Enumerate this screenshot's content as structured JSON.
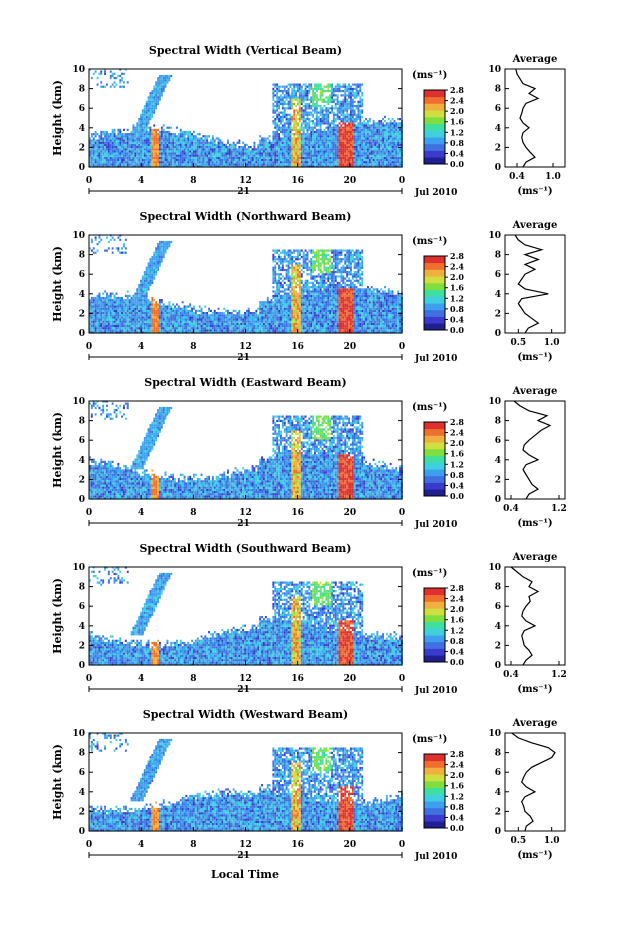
{
  "figure": {
    "xlabel_global": "Local Time",
    "month_label": "Jul 2010",
    "day_label": "21",
    "colorbar_unit": "(ms⁻¹)",
    "avg_title": "Average",
    "avg_xlabel": "(ms⁻¹)"
  },
  "colorbar": {
    "ticks": [
      "0.0",
      "0.4",
      "0.8",
      "1.2",
      "1.6",
      "2.0",
      "2.4",
      "2.8"
    ],
    "colors": [
      "#1f1f8f",
      "#3a3acc",
      "#3f6fe0",
      "#3f9fef",
      "#3fcfdf",
      "#3fdf9f",
      "#7fdf3f",
      "#cfdf3f",
      "#efb03f",
      "#ef6f2f",
      "#df2f2f"
    ]
  },
  "chart_data": [
    {
      "type": "heatmap",
      "title": "Spectral Width (Vertical Beam)",
      "ylabel": "Height (km)",
      "xlim": [
        0,
        24
      ],
      "ylim": [
        0,
        10
      ],
      "xticks": [
        "0",
        "4",
        "8",
        "12",
        "16",
        "20",
        "0"
      ],
      "yticks": [
        "0",
        "2",
        "4",
        "6",
        "8",
        "10"
      ],
      "average": {
        "xticks": [
          "0.4",
          "1.0"
        ],
        "xlim": [
          0.2,
          1.2
        ],
        "profile": [
          [
            0.5,
            0
          ],
          [
            0.55,
            0.5
          ],
          [
            0.7,
            1
          ],
          [
            0.62,
            1.5
          ],
          [
            0.55,
            2
          ],
          [
            0.5,
            2.5
          ],
          [
            0.48,
            3
          ],
          [
            0.5,
            3.5
          ],
          [
            0.6,
            4
          ],
          [
            0.5,
            4.5
          ],
          [
            0.45,
            5
          ],
          [
            0.48,
            5.5
          ],
          [
            0.5,
            6
          ],
          [
            0.55,
            6.5
          ],
          [
            0.75,
            7
          ],
          [
            0.6,
            7.5
          ],
          [
            0.7,
            8
          ],
          [
            0.5,
            8.5
          ],
          [
            0.45,
            9
          ],
          [
            0.4,
            9.5
          ],
          [
            0.38,
            10
          ]
        ]
      }
    },
    {
      "type": "heatmap",
      "title": "Spectral Width (Northward Beam)",
      "ylabel": "Height (km)",
      "xlim": [
        0,
        24
      ],
      "ylim": [
        0,
        10
      ],
      "xticks": [
        "0",
        "4",
        "8",
        "12",
        "16",
        "20",
        "0"
      ],
      "yticks": [
        "0",
        "2",
        "4",
        "6",
        "8",
        "10"
      ],
      "average": {
        "xticks": [
          "0.5",
          "1.0"
        ],
        "xlim": [
          0.3,
          1.2
        ],
        "profile": [
          [
            0.6,
            0
          ],
          [
            0.65,
            0.5
          ],
          [
            0.8,
            1
          ],
          [
            0.7,
            1.5
          ],
          [
            0.6,
            2
          ],
          [
            0.55,
            2.5
          ],
          [
            0.5,
            3
          ],
          [
            0.55,
            3.5
          ],
          [
            0.95,
            4
          ],
          [
            0.6,
            4.5
          ],
          [
            0.5,
            5
          ],
          [
            0.55,
            5.5
          ],
          [
            0.6,
            6
          ],
          [
            0.75,
            6.5
          ],
          [
            0.6,
            7
          ],
          [
            0.8,
            7.5
          ],
          [
            0.6,
            8
          ],
          [
            0.85,
            8.5
          ],
          [
            0.6,
            9
          ],
          [
            0.5,
            9.5
          ],
          [
            0.45,
            10
          ]
        ]
      }
    },
    {
      "type": "heatmap",
      "title": "Spectral Width (Eastward Beam)",
      "ylabel": "Height (km)",
      "xlim": [
        0,
        24
      ],
      "ylim": [
        0,
        10
      ],
      "xticks": [
        "0",
        "4",
        "8",
        "12",
        "16",
        "20",
        "0"
      ],
      "yticks": [
        "0",
        "2",
        "4",
        "6",
        "8",
        "10"
      ],
      "average": {
        "xticks": [
          "0.4",
          "1.2"
        ],
        "xlim": [
          0.3,
          1.3
        ],
        "profile": [
          [
            0.65,
            0
          ],
          [
            0.7,
            0.5
          ],
          [
            0.85,
            1
          ],
          [
            0.75,
            1.5
          ],
          [
            0.7,
            2
          ],
          [
            0.65,
            2.5
          ],
          [
            0.6,
            3
          ],
          [
            0.65,
            3.5
          ],
          [
            0.85,
            4
          ],
          [
            0.7,
            4.5
          ],
          [
            0.6,
            5
          ],
          [
            0.62,
            5.5
          ],
          [
            0.7,
            6
          ],
          [
            0.8,
            6.5
          ],
          [
            0.9,
            7
          ],
          [
            1.05,
            7.5
          ],
          [
            0.85,
            8
          ],
          [
            1.0,
            8.5
          ],
          [
            0.7,
            9
          ],
          [
            0.55,
            9.5
          ],
          [
            0.45,
            10
          ]
        ]
      }
    },
    {
      "type": "heatmap",
      "title": "Spectral Width (Southward Beam)",
      "ylabel": "Height (km)",
      "xlim": [
        0,
        24
      ],
      "ylim": [
        0,
        10
      ],
      "xticks": [
        "0",
        "4",
        "8",
        "12",
        "16",
        "20",
        "0"
      ],
      "yticks": [
        "0",
        "2",
        "4",
        "6",
        "8",
        "10"
      ],
      "average": {
        "xticks": [
          "0.4",
          "1.2"
        ],
        "xlim": [
          0.3,
          1.3
        ],
        "profile": [
          [
            0.6,
            0
          ],
          [
            0.65,
            0.5
          ],
          [
            0.75,
            1
          ],
          [
            0.7,
            1.5
          ],
          [
            0.62,
            2
          ],
          [
            0.6,
            2.5
          ],
          [
            0.58,
            3
          ],
          [
            0.62,
            3.5
          ],
          [
            0.8,
            4
          ],
          [
            0.65,
            4.5
          ],
          [
            0.58,
            5
          ],
          [
            0.6,
            5.5
          ],
          [
            0.65,
            6
          ],
          [
            0.72,
            6.5
          ],
          [
            0.7,
            7
          ],
          [
            0.85,
            7.5
          ],
          [
            0.7,
            8
          ],
          [
            0.75,
            8.5
          ],
          [
            0.6,
            9
          ],
          [
            0.5,
            9.5
          ],
          [
            0.4,
            10
          ]
        ]
      }
    },
    {
      "type": "heatmap",
      "title": "Spectral Width (Westward Beam)",
      "ylabel": "Height (km)",
      "xlim": [
        0,
        24
      ],
      "ylim": [
        0,
        10
      ],
      "xticks": [
        "0",
        "4",
        "8",
        "12",
        "16",
        "20",
        "0"
      ],
      "yticks": [
        "0",
        "2",
        "4",
        "6",
        "8",
        "10"
      ],
      "average": {
        "xticks": [
          "0.5",
          "1.0"
        ],
        "xlim": [
          0.3,
          1.2
        ],
        "profile": [
          [
            0.6,
            0
          ],
          [
            0.62,
            0.5
          ],
          [
            0.72,
            1
          ],
          [
            0.68,
            1.5
          ],
          [
            0.6,
            2
          ],
          [
            0.58,
            2.5
          ],
          [
            0.55,
            3
          ],
          [
            0.6,
            3.5
          ],
          [
            0.75,
            4
          ],
          [
            0.62,
            4.5
          ],
          [
            0.55,
            5
          ],
          [
            0.58,
            5.5
          ],
          [
            0.62,
            6
          ],
          [
            0.7,
            6.5
          ],
          [
            0.85,
            7
          ],
          [
            1.0,
            7.5
          ],
          [
            1.05,
            8
          ],
          [
            0.95,
            8.5
          ],
          [
            0.7,
            9
          ],
          [
            0.5,
            9.5
          ],
          [
            0.4,
            10
          ]
        ]
      }
    }
  ]
}
